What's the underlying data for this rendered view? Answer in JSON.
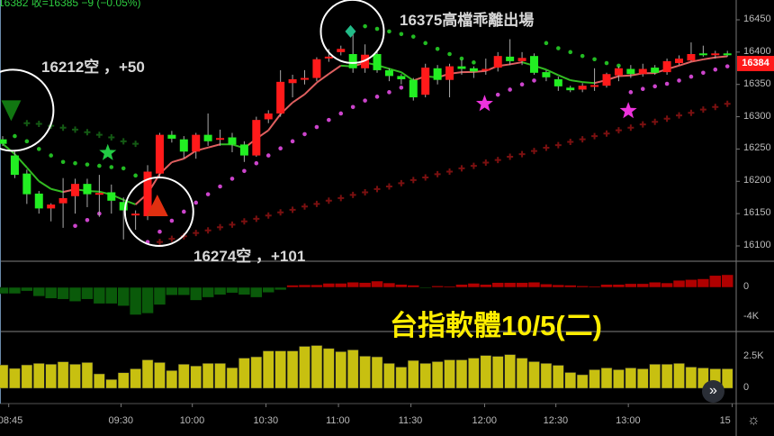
{
  "ticker": {
    "text": "16382 收=16385 −9 (−0.05%)"
  },
  "annotations": {
    "a1": "16212空 ，+50",
    "a2": "16274空 ，+101",
    "a3": "16375高檔乖離出場"
  },
  "overlay_title": "台指軟體10/5(二)",
  "last_price": "16384",
  "colors": {
    "up": "#ff1a1a",
    "down": "#22ee22",
    "volume": "#c8c010",
    "osc_up": "#b00000",
    "osc_down": "#0a5a0a",
    "sar_low": "#cc44cc",
    "sar_high": "#22bb22",
    "cross_red": "#7a1010",
    "cross_green": "#145a14",
    "overlay_text": "#ffee00"
  },
  "icons": {
    "scroll": "double-chevron-right-icon",
    "settings": "gear-icon"
  },
  "scroll_glyph": "»",
  "gear_glyph": "☼",
  "chart_data": {
    "type": "candlestick",
    "interval": "5min",
    "price_axis": {
      "ticks": [
        "16450",
        "16400",
        "16350",
        "16300",
        "16250",
        "16200",
        "16150",
        "16100"
      ],
      "range": [
        16069,
        16481
      ]
    },
    "osc_axis": {
      "ticks": [
        "0",
        "-4K"
      ]
    },
    "volume_axis": {
      "ticks": [
        "2.5K",
        "0"
      ]
    },
    "time_ticks": [
      "08:45",
      "09:30",
      "10:00",
      "10:30",
      "11:00",
      "11:30",
      "12:00",
      "12:30",
      "13:00",
      "15"
    ],
    "ohlc": [
      [
        16265,
        16270,
        16255,
        16258
      ],
      [
        16240,
        16248,
        16205,
        16210
      ],
      [
        16212,
        16218,
        16165,
        16180
      ],
      [
        16181,
        16185,
        16150,
        16158
      ],
      [
        16158,
        16166,
        16138,
        16164
      ],
      [
        16166,
        16205,
        16128,
        16174
      ],
      [
        16177,
        16204,
        16150,
        16196
      ],
      [
        16196,
        16204,
        16160,
        16180
      ],
      [
        16180,
        16210,
        16145,
        16182
      ],
      [
        16183,
        16195,
        16150,
        16170
      ],
      [
        16168,
        16175,
        16110,
        16155
      ],
      [
        16148,
        16155,
        16125,
        16150
      ],
      [
        16146,
        16225,
        16140,
        16215
      ],
      [
        16212,
        16275,
        16205,
        16272
      ],
      [
        16272,
        16278,
        16260,
        16266
      ],
      [
        16265,
        16270,
        16235,
        16246
      ],
      [
        16246,
        16275,
        16235,
        16272
      ],
      [
        16272,
        16305,
        16255,
        16262
      ],
      [
        16265,
        16280,
        16255,
        16267
      ],
      [
        16268,
        16275,
        16245,
        16257
      ],
      [
        16257,
        16262,
        16230,
        16240
      ],
      [
        16240,
        16300,
        16238,
        16295
      ],
      [
        16296,
        16310,
        16290,
        16305
      ],
      [
        16305,
        16372,
        16300,
        16354
      ],
      [
        16352,
        16365,
        16330,
        16358
      ],
      [
        16358,
        16372,
        16350,
        16360
      ],
      [
        16360,
        16392,
        16355,
        16389
      ],
      [
        16391,
        16405,
        16385,
        16393
      ],
      [
        16400,
        16410,
        16395,
        16405
      ],
      [
        16397,
        16430,
        16368,
        16375
      ],
      [
        16375,
        16412,
        16368,
        16396
      ],
      [
        16397,
        16403,
        16368,
        16372
      ],
      [
        16372,
        16375,
        16355,
        16363
      ],
      [
        16363,
        16366,
        16350,
        16358
      ],
      [
        16357,
        16360,
        16325,
        16330
      ],
      [
        16334,
        16382,
        16330,
        16376
      ],
      [
        16375,
        16380,
        16350,
        16357
      ],
      [
        16357,
        16382,
        16330,
        16378
      ],
      [
        16378,
        16388,
        16365,
        16374
      ],
      [
        16375,
        16378,
        16360,
        16370
      ],
      [
        16373,
        16390,
        16365,
        16374
      ],
      [
        16376,
        16400,
        16370,
        16394
      ],
      [
        16393,
        16420,
        16380,
        16386
      ],
      [
        16386,
        16400,
        16380,
        16391
      ],
      [
        16394,
        16398,
        16365,
        16368
      ],
      [
        16369,
        16372,
        16355,
        16361
      ],
      [
        16358,
        16362,
        16340,
        16347
      ],
      [
        16345,
        16348,
        16338,
        16341
      ],
      [
        16342,
        16352,
        16338,
        16348
      ],
      [
        16348,
        16375,
        16340,
        16349
      ],
      [
        16348,
        16368,
        16345,
        16366
      ],
      [
        16364,
        16378,
        16355,
        16375
      ],
      [
        16374,
        16380,
        16360,
        16366
      ],
      [
        16366,
        16382,
        16362,
        16374
      ],
      [
        16376,
        16380,
        16365,
        16368
      ],
      [
        16369,
        16390,
        16365,
        16386
      ],
      [
        16383,
        16395,
        16380,
        16390
      ],
      [
        16387,
        16415,
        16385,
        16397
      ],
      [
        16398,
        16410,
        16393,
        16396
      ],
      [
        16396,
        16402,
        16390,
        16398
      ],
      [
        16398,
        16402,
        16393,
        16397
      ]
    ],
    "oscillator": [
      -850,
      -850,
      -500,
      -1200,
      -1500,
      -1600,
      -1900,
      -1600,
      -2200,
      -2200,
      -2500,
      -3700,
      -3500,
      -2350,
      -1050,
      -1050,
      -1750,
      -1350,
      -1000,
      -750,
      -1000,
      -1350,
      -700,
      -350,
      300,
      350,
      350,
      550,
      550,
      700,
      650,
      850,
      600,
      400,
      300,
      -100,
      200,
      150,
      400,
      550,
      400,
      650,
      650,
      650,
      700,
      450,
      350,
      300,
      200,
      150,
      400,
      400,
      500,
      500,
      700,
      600,
      950,
      1050,
      1150,
      1600,
      1700
    ],
    "volume": [
      1850,
      1570,
      1850,
      1970,
      1900,
      2100,
      1900,
      2040,
      1140,
      690,
      1230,
      1540,
      2250,
      2040,
      1400,
      1900,
      1760,
      1970,
      1970,
      1620,
      2390,
      2490,
      2960,
      2960,
      2960,
      3320,
      3390,
      3150,
      2900,
      3040,
      2540,
      2490,
      1970,
      1680,
      2200,
      1970,
      2110,
      2250,
      2250,
      2390,
      2600,
      2530,
      2670,
      2390,
      2110,
      1970,
      1820,
      1250,
      1070,
      1470,
      1610,
      1470,
      1610,
      1540,
      1900,
      1900,
      1970,
      1680,
      1610,
      1540,
      1540
    ],
    "sar_low": [
      {
        "start": 6,
        "values": [
          16131,
          16140,
          16150
        ]
      },
      {
        "start": 12,
        "values": [
          16106,
          16122,
          16139,
          16153,
          16167,
          16180,
          16192,
          16204,
          16216,
          16228,
          16240,
          16251,
          16262,
          16273,
          16284,
          16295,
          16305,
          16315,
          16325,
          16331,
          16338,
          16345,
          16351
        ]
      },
      {
        "start": 41,
        "values": [
          16334,
          16342,
          16350,
          16356
        ]
      },
      {
        "start": 52,
        "values": [
          16338,
          16343,
          16347,
          16351,
          16356,
          16362,
          16368,
          16373,
          16378
        ]
      }
    ],
    "sar_high": [
      {
        "start": 1,
        "values": [
          16270,
          16262,
          16250,
          16240,
          16230,
          16228,
          16226,
          16224,
          16222,
          16220,
          16209
        ]
      },
      {
        "start": 30,
        "values": [
          16440,
          16436,
          16432,
          16428,
          16424,
          16414,
          16405,
          16397,
          16390,
          16384
        ]
      },
      {
        "start": 45,
        "values": [
          16414,
          16406,
          16400,
          16394,
          16389,
          16383,
          16379
        ]
      }
    ],
    "cross_green": {
      "start": 2,
      "values": [
        16290,
        16289,
        16286,
        16283,
        16280,
        16276,
        16272,
        16268,
        16262,
        16258
      ]
    },
    "cross_red": {
      "start": 13,
      "values": [
        16106,
        16111,
        16115,
        16120,
        16124,
        16129,
        16133,
        16138,
        16142,
        16147,
        16152,
        16156,
        16161,
        16165,
        16170,
        16174,
        16179,
        16183,
        16188,
        16192,
        16197,
        16202,
        16206,
        16211,
        16215,
        16220,
        16224,
        16229,
        16233,
        16238,
        16242,
        16247,
        16252,
        16256,
        16261,
        16265,
        16270,
        16274,
        16279,
        16283,
        16288,
        16292,
        16297,
        16302,
        16306,
        16311,
        16315,
        16320
      ]
    },
    "signals": [
      {
        "type": "sell-triangle",
        "index": 0.7,
        "price": 16310,
        "circled": true
      },
      {
        "type": "green-star",
        "index": 8.7,
        "price": 16244
      },
      {
        "type": "buy-triangle",
        "index": 12.8,
        "price": 16160,
        "circled": true
      },
      {
        "type": "diamond",
        "index": 28.8,
        "price": 16432,
        "circled": true
      },
      {
        "type": "magenta-star",
        "index": 39.9,
        "price": 16320
      },
      {
        "type": "magenta-star",
        "index": 51.8,
        "price": 16309
      }
    ]
  }
}
